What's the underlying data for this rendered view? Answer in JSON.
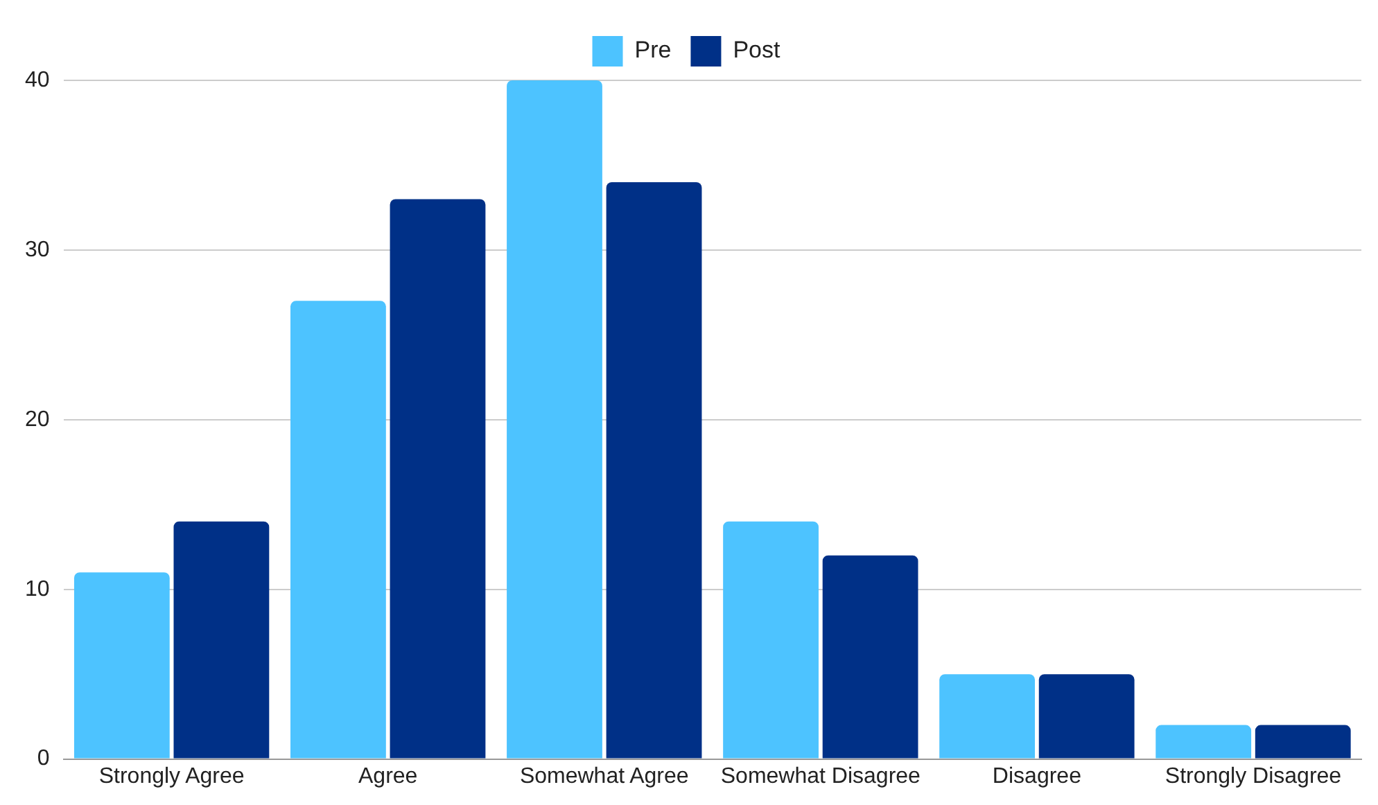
{
  "chart_data": {
    "type": "bar",
    "categories": [
      "Strongly Agree",
      "Agree",
      "Somewhat Agree",
      "Somewhat Disagree",
      "Disagree",
      "Strongly Disagree"
    ],
    "series": [
      {
        "name": "Pre",
        "color": "#4dc3ff",
        "values": [
          11,
          27,
          40,
          14,
          5,
          2
        ]
      },
      {
        "name": "Post",
        "color": "#003087",
        "values": [
          14,
          33,
          34,
          12,
          5,
          2
        ]
      }
    ],
    "ylim": [
      0,
      40
    ],
    "yticks": [
      0,
      10,
      20,
      30,
      40
    ],
    "grid": "y",
    "legend": "top"
  }
}
